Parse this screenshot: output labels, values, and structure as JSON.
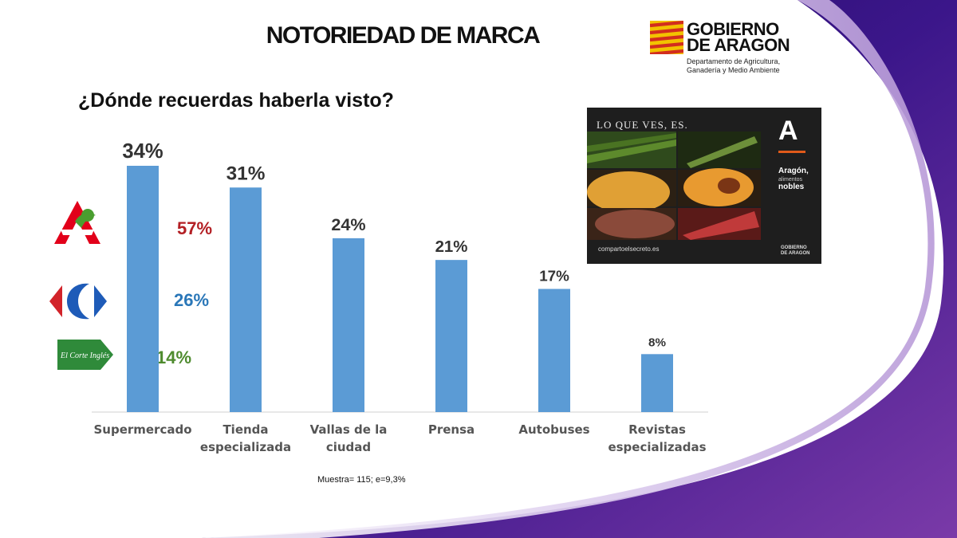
{
  "title": "NOTORIEDAD DE MARCA",
  "question": "¿Dónde recuerdas haberla visto?",
  "government_logo": {
    "line1": "GOBIERNO",
    "line2": "DE ARAGON",
    "subtitle_line1": "Departamento de Agricultura,",
    "subtitle_line2": "Ganadería y Medio Ambiente"
  },
  "advertisement": {
    "slogan": "LO QUE VES, ES.",
    "brand_letter": "A",
    "brand_name": "Aragón,",
    "brand_sub": "alimentos",
    "brand_tag": "nobles",
    "url": "compartoelsecreto.es",
    "gov_line1": "GOBIERNO",
    "gov_line2": "DE ARAGON"
  },
  "supermarket_breakdown": [
    {
      "store_icon": "alcampo-logo-icon",
      "value": "57%",
      "color": "#b31f24"
    },
    {
      "store_icon": "carrefour-logo-icon",
      "value": "26%",
      "color": "#2a77b8"
    },
    {
      "store_icon": "el-corte-ingles-logo-icon",
      "value": "14%",
      "color": "#4e8b2e"
    }
  ],
  "store_logo_text": {
    "el_corte_ingles": "El Corte Inglés"
  },
  "note": "Muestra= 115; e=9,3%",
  "colors": {
    "bar": "#5b9bd5",
    "purple_dark": "#2d0d6b",
    "purple_mid": "#6a2ea0"
  },
  "chart_data": {
    "type": "bar",
    "categories": [
      [
        "Supermercado"
      ],
      [
        "Tienda",
        "especializada"
      ],
      [
        "Vallas de la",
        "ciudad"
      ],
      [
        "Prensa"
      ],
      [
        "Autobuses"
      ],
      [
        "Revistas",
        "especializadas"
      ]
    ],
    "values": [
      34,
      31,
      24,
      21,
      17,
      8
    ],
    "data_labels": [
      "34%",
      "31%",
      "24%",
      "21%",
      "17%",
      "8%"
    ],
    "ylim": [
      0,
      34
    ],
    "grid": false,
    "legend": "none"
  }
}
